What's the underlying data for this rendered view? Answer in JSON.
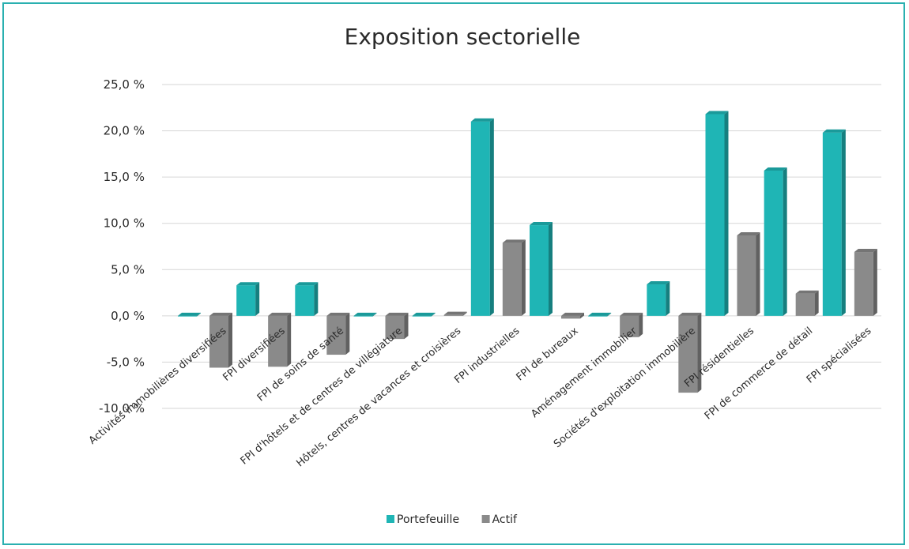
{
  "chart_data": {
    "type": "bar",
    "title": "Exposition sectorielle",
    "xlabel": "",
    "ylabel": "",
    "ylim": [
      -10,
      25
    ],
    "yticks": [
      "25,0 %",
      "20,0 %",
      "15,0 %",
      "10,0 %",
      "5,0 %",
      "0,0 %",
      "-5,0 %",
      "-10,0 %"
    ],
    "categories": [
      "Activités immobilières diversifiées",
      "FPI diversifiées",
      "FPI de soins de santé",
      "FPI d'hôtels et de centres de villégiature",
      "Hôtels, centres de vacances et croisières",
      "FPI industrielles",
      "FPI de bureaux",
      "Aménagement immobilier",
      "Sociétés d'exploitation immobilière",
      "FPI résidentielles",
      "FPI de commerce de détail",
      "FPI spécialisées"
    ],
    "series": [
      {
        "name": "Portefeuille",
        "color": "#1fb5b5",
        "values": [
          0,
          3.3,
          3.3,
          0,
          0,
          21.0,
          9.8,
          0,
          3.4,
          21.8,
          15.7,
          19.8
        ]
      },
      {
        "name": "Actif",
        "color": "#8a8a8a",
        "values": [
          -5.6,
          -5.5,
          -4.2,
          -2.5,
          0.1,
          7.9,
          -0.3,
          -2.3,
          -8.3,
          8.7,
          2.4,
          6.9
        ]
      }
    ],
    "grid": true,
    "legend": "bottom"
  }
}
